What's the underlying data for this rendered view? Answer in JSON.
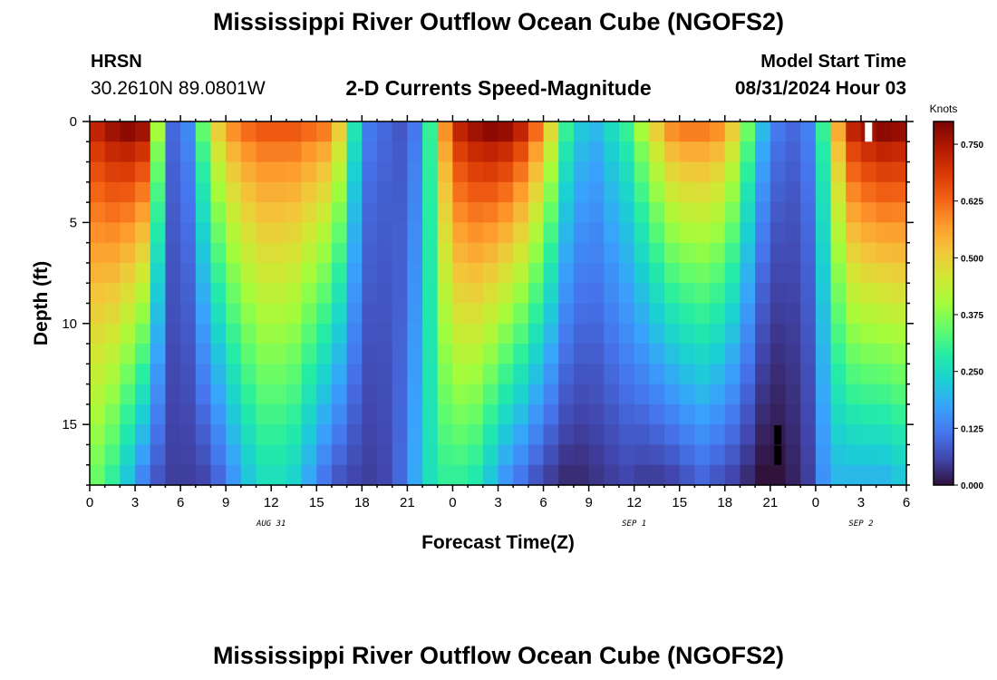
{
  "header": {
    "title": "Mississippi River Outflow Ocean Cube (NGOFS2)",
    "station": "HRSN",
    "coords": "30.2610N  89.0801W",
    "variable": "2-D Currents Speed-Magnitude",
    "model_start_label": "Model Start Time",
    "model_start_value": "08/31/2024 Hour 03"
  },
  "footer": {
    "title": "Mississippi River Outflow Ocean Cube (NGOFS2)"
  },
  "colors": {
    "colormap": [
      "#30123b",
      "#4145ab",
      "#4675ed",
      "#39a2fc",
      "#1bcfd4",
      "#24eca6",
      "#61fc6c",
      "#a4fc3b",
      "#d1e834",
      "#f3c63a",
      "#fe9b2d",
      "#f36315",
      "#d93806",
      "#b11901",
      "#7a0403"
    ],
    "missing": "#000000",
    "axis": "#000000"
  },
  "chart_data": {
    "type": "heatmap",
    "xlabel": "Forecast Time(Z)",
    "ylabel": "Depth (ft)",
    "xlim": [
      0,
      54
    ],
    "ylim": [
      0,
      18
    ],
    "x_ticks": [
      0,
      3,
      6,
      9,
      12,
      15,
      18,
      21,
      24,
      27,
      30,
      33,
      36,
      39,
      42,
      45,
      48,
      51,
      54
    ],
    "x_tick_labels": [
      "0",
      "3",
      "6",
      "9",
      "12",
      "15",
      "18",
      "21",
      "0",
      "3",
      "6",
      "9",
      "12",
      "15",
      "18",
      "21",
      "0",
      "3",
      "6"
    ],
    "y_ticks": [
      0,
      5,
      10,
      15
    ],
    "y_tick_labels": [
      "0",
      "5",
      "10",
      "15"
    ],
    "date_labels": [
      {
        "x": 12,
        "text": "AUG 31"
      },
      {
        "x": 36,
        "text": "SEP 1"
      },
      {
        "x": 51,
        "text": "SEP 2"
      }
    ],
    "colorbar": {
      "label": "Knots",
      "min": 0.0,
      "max": 0.8,
      "ticks": [
        0.0,
        0.125,
        0.25,
        0.375,
        0.5,
        0.625,
        0.75
      ],
      "tick_labels": [
        "0.000",
        "0.125",
        "0.250",
        "0.375",
        "0.500",
        "0.625",
        "0.750"
      ]
    },
    "time_step_hours": 1,
    "depth_levels_ft": [
      0.5,
      1.5,
      2.5,
      3.5,
      4.5,
      5.5,
      6.5,
      7.5,
      8.5,
      9.5,
      10.5,
      11.5,
      12.5,
      13.5,
      14.5,
      15.5,
      16.5,
      17.5
    ],
    "surface_speed_knots": [
      0.72,
      0.76,
      0.78,
      0.76,
      0.4,
      0.1,
      0.14,
      0.34,
      0.5,
      0.58,
      0.62,
      0.64,
      0.64,
      0.64,
      0.62,
      0.6,
      0.5,
      0.27,
      0.12,
      0.1,
      0.08,
      0.12,
      0.3,
      0.58,
      0.72,
      0.76,
      0.78,
      0.77,
      0.72,
      0.62,
      0.48,
      0.3,
      0.22,
      0.2,
      0.25,
      0.3,
      0.4,
      0.5,
      0.58,
      0.6,
      0.6,
      0.58,
      0.5,
      0.35,
      0.2,
      0.12,
      0.1,
      0.13,
      0.3,
      0.55,
      0.72,
      0.76,
      0.78,
      0.77
    ],
    "bottom_speed_knots": [
      0.35,
      0.3,
      0.22,
      0.14,
      0.08,
      0.05,
      0.05,
      0.06,
      0.1,
      0.16,
      0.22,
      0.26,
      0.26,
      0.24,
      0.18,
      0.12,
      0.08,
      0.06,
      0.05,
      0.06,
      0.1,
      0.18,
      0.26,
      0.3,
      0.3,
      0.28,
      0.22,
      0.16,
      0.12,
      0.08,
      0.05,
      0.03,
      0.03,
      0.04,
      0.05,
      0.06,
      0.05,
      0.05,
      0.06,
      0.08,
      0.1,
      0.08,
      0.06,
      0.03,
      0.0,
      0.0,
      0.02,
      0.05,
      0.15,
      0.2,
      0.2,
      0.2,
      0.2,
      0.22
    ],
    "depth_decay_exponent": 0.8,
    "missing_cells": [
      {
        "hour": 51,
        "depth_ft": 0.5
      },
      {
        "hour": 45,
        "depth_ft": 15.5
      },
      {
        "hour": 45,
        "depth_ft": 16.5
      }
    ]
  }
}
